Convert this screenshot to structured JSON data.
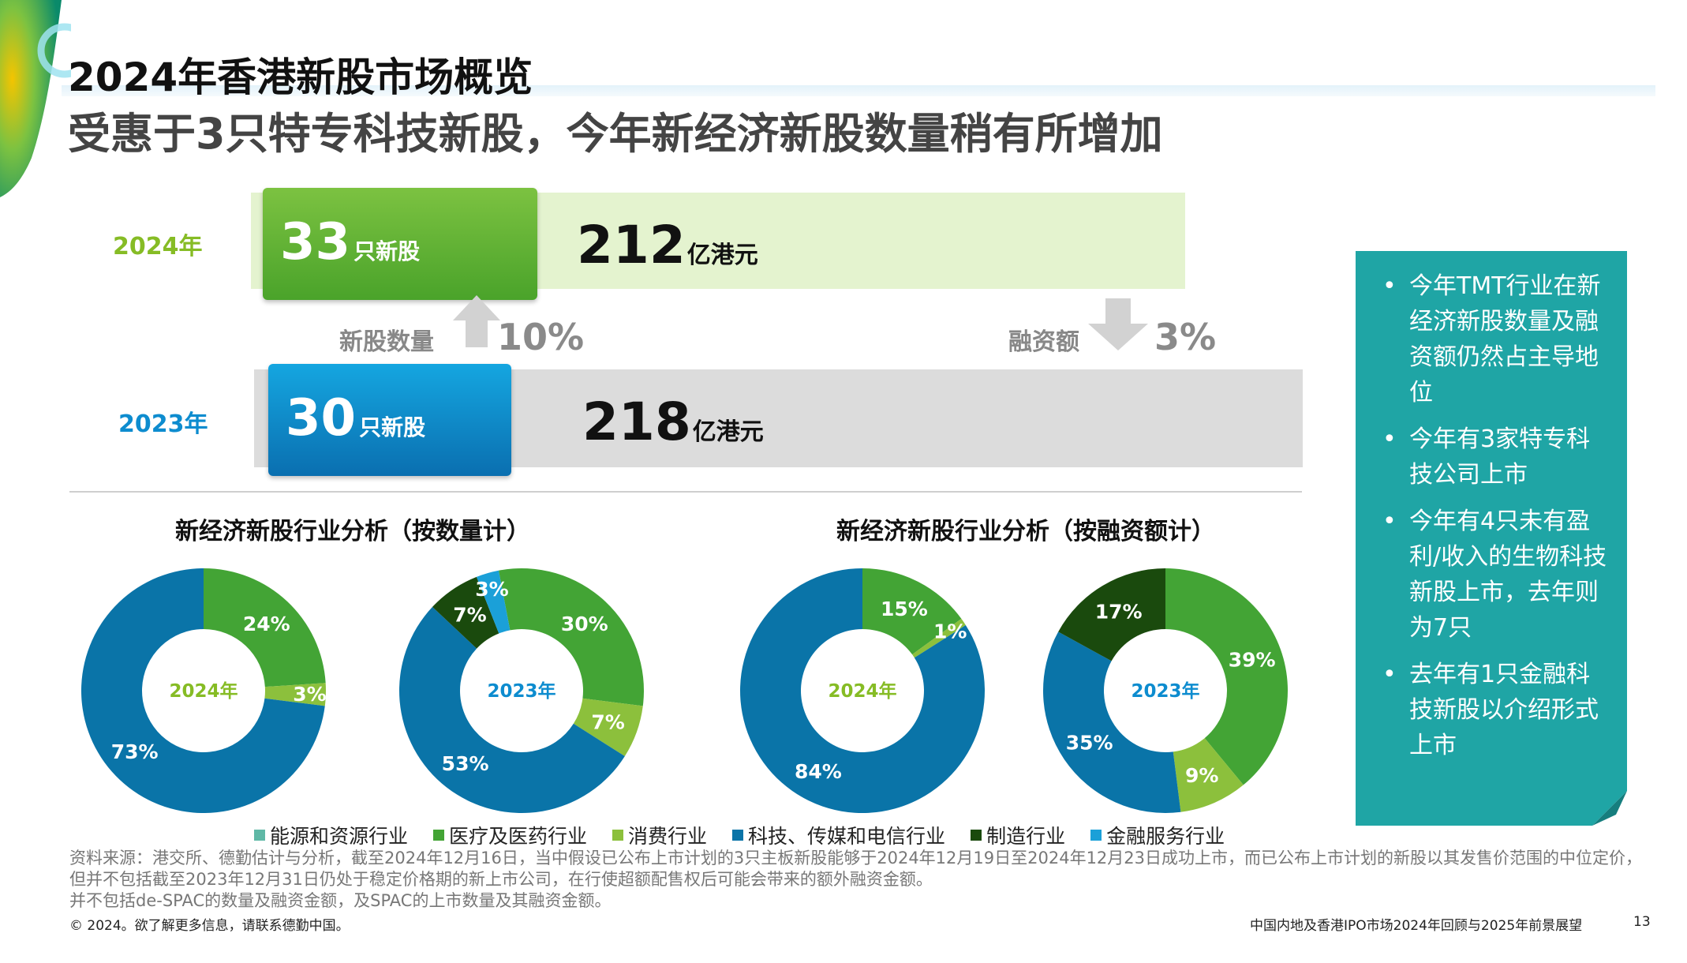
{
  "header": {
    "title": "2024年香港新股市场概览",
    "subtitle": "受惠于3只特专科技新股，今年新经济新股数量稍有所增加"
  },
  "comparison": {
    "year_2024": {
      "label": "2024年",
      "count": "33",
      "count_unit": "只新股",
      "funds": "212",
      "funds_unit": "亿港元"
    },
    "year_2023": {
      "label": "2023年",
      "count": "30",
      "count_unit": "只新股",
      "funds": "218",
      "funds_unit": "亿港元"
    },
    "count_change": {
      "label": "新股数量",
      "pct": "10%",
      "direction": "up"
    },
    "funds_change": {
      "label": "融资额",
      "pct": "3%",
      "direction": "down"
    }
  },
  "charts": {
    "count_title": "新经济新股行业分析（按数量计）",
    "funds_title": "新经济新股行业分析（按融资额计）"
  },
  "colors": {
    "energy": "#5fb8a6",
    "healthcare": "#43a435",
    "consumer": "#8cc03c",
    "tmt": "#0a74a8",
    "manufacturing": "#1a4a0d",
    "financial": "#1ba0d8"
  },
  "chart_data": [
    {
      "type": "pie",
      "title": "新经济新股行业分析（按数量计）",
      "center_label": "2024年",
      "categories": [
        "医疗及医药行业",
        "消费行业",
        "科技、传媒和电信行业"
      ],
      "values": [
        24,
        3,
        73
      ],
      "labels": [
        "24%",
        "3%",
        "73%"
      ]
    },
    {
      "type": "pie",
      "title": "新经济新股行业分析（按数量计）",
      "center_label": "2023年",
      "categories": [
        "医疗及医药行业",
        "消费行业",
        "科技、传媒和电信行业",
        "制造行业",
        "金融服务行业"
      ],
      "values": [
        30,
        7,
        53,
        7,
        3
      ],
      "labels": [
        "30%",
        "7%",
        "53%",
        "7%",
        "3%"
      ]
    },
    {
      "type": "pie",
      "title": "新经济新股行业分析（按融资额计）",
      "center_label": "2024年",
      "categories": [
        "医疗及医药行业",
        "消费行业",
        "科技、传媒和电信行业"
      ],
      "values": [
        15,
        1,
        84
      ],
      "labels": [
        "15%",
        "1%",
        "84%"
      ]
    },
    {
      "type": "pie",
      "title": "新经济新股行业分析（按融资额计）",
      "center_label": "2023年",
      "categories": [
        "医疗及医药行业",
        "消费行业",
        "科技、传媒和电信行业",
        "制造行业"
      ],
      "values": [
        39,
        9,
        35,
        17
      ],
      "labels": [
        "39%",
        "9%",
        "35%",
        "17%"
      ]
    }
  ],
  "legend": [
    {
      "label": "能源和资源行业",
      "key": "energy"
    },
    {
      "label": "医疗及医药行业",
      "key": "healthcare"
    },
    {
      "label": "消费行业",
      "key": "consumer"
    },
    {
      "label": "科技、传媒和电信行业",
      "key": "tmt"
    },
    {
      "label": "制造行业",
      "key": "manufacturing"
    },
    {
      "label": "金融服务行业",
      "key": "financial"
    }
  ],
  "notes": [
    "今年TMT行业在新经济新股数量及融资额仍然占主导地位",
    "今年有3家特专科技公司上市",
    "今年有4只未有盈利/收入的生物科技新股上市，去年则为7只",
    "去年有1只金融科技新股以介绍形式上市"
  ],
  "source": {
    "line1": "资料来源：港交所、德勤估计与分析，截至2024年12月16日，当中假设已公布上市计划的3只主板新股能够于2024年12月19日至2024年12月23日成功上市，而已公布上市计划的新股以其发售价范围的中位定价，但并不包括截至2023年12月31日仍处于稳定价格期的新上市公司，在行使超额配售权后可能会带来的额外融资金额。",
    "line2": "并不包括de-SPAC的数量及融资金额，及SPAC的上市数量及其融资金额。"
  },
  "footer": {
    "copyright": "© 2024。欲了解更多信息，请联系德勤中国。",
    "report_title": "中国内地及香港IPO市场2024年回顾与2025年前景展望",
    "page_number": "13"
  }
}
